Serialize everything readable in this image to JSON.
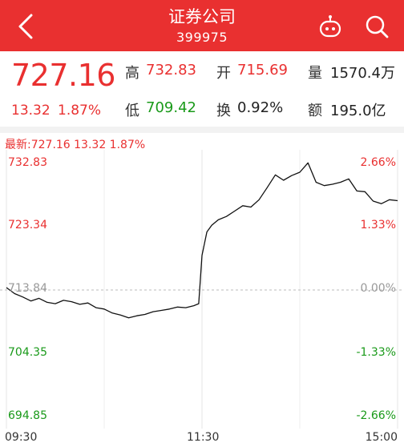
{
  "header": {
    "title": "证券公司",
    "code": "399975"
  },
  "quote": {
    "price": "727.16",
    "change": "13.32",
    "change_pct": "1.87%",
    "high_label": "高",
    "high": "732.83",
    "low_label": "低",
    "low": "709.42",
    "open_label": "开",
    "open": "715.69",
    "turnover_label": "换",
    "turnover": "0.92%",
    "volume_label": "量",
    "volume": "1570.4万",
    "amount_label": "额",
    "amount": "195.0亿"
  },
  "latest_line": "最新:727.16 13.32 1.87%",
  "colors": {
    "up": "#e93030",
    "down": "#1a9a1a",
    "header": "#e93030"
  },
  "chart_data": {
    "type": "line",
    "x_ticks": [
      "09:30",
      "11:30",
      "15:00"
    ],
    "y_ticks": [
      "732.83",
      "723.34",
      "713.84",
      "704.35",
      "694.85"
    ],
    "pct_ticks": [
      "2.66%",
      "1.33%",
      "0.00%",
      "-1.33%",
      "-2.66%"
    ],
    "prev_close": 713.84,
    "ylim": [
      694.85,
      732.83
    ],
    "session_minutes": 240,
    "series": [
      {
        "t": [
          0,
          5,
          10,
          15,
          20,
          25,
          30,
          35,
          40,
          45,
          50,
          55,
          60,
          65,
          70,
          75,
          80,
          85,
          90,
          95,
          100,
          105,
          110,
          115,
          118,
          120,
          123,
          126,
          130,
          135,
          140,
          145,
          150,
          155,
          160,
          165,
          170,
          175,
          180,
          185,
          190,
          195,
          200,
          205,
          210,
          215,
          220,
          225,
          230,
          235,
          240
        ],
        "v": [
          714.2,
          713.3,
          712.8,
          712.2,
          712.6,
          712.0,
          711.8,
          712.3,
          712.1,
          711.7,
          711.9,
          711.2,
          711.0,
          710.4,
          710.1,
          709.7,
          710.0,
          710.2,
          710.6,
          710.8,
          711.0,
          711.3,
          711.2,
          711.5,
          711.8,
          719.0,
          722.5,
          723.5,
          724.3,
          724.8,
          725.6,
          726.4,
          726.2,
          727.3,
          729.1,
          731.0,
          730.2,
          730.9,
          731.4,
          732.8,
          729.9,
          729.4,
          729.6,
          729.9,
          730.4,
          728.6,
          728.5,
          727.1,
          726.7,
          727.3,
          727.16
        ]
      }
    ]
  }
}
